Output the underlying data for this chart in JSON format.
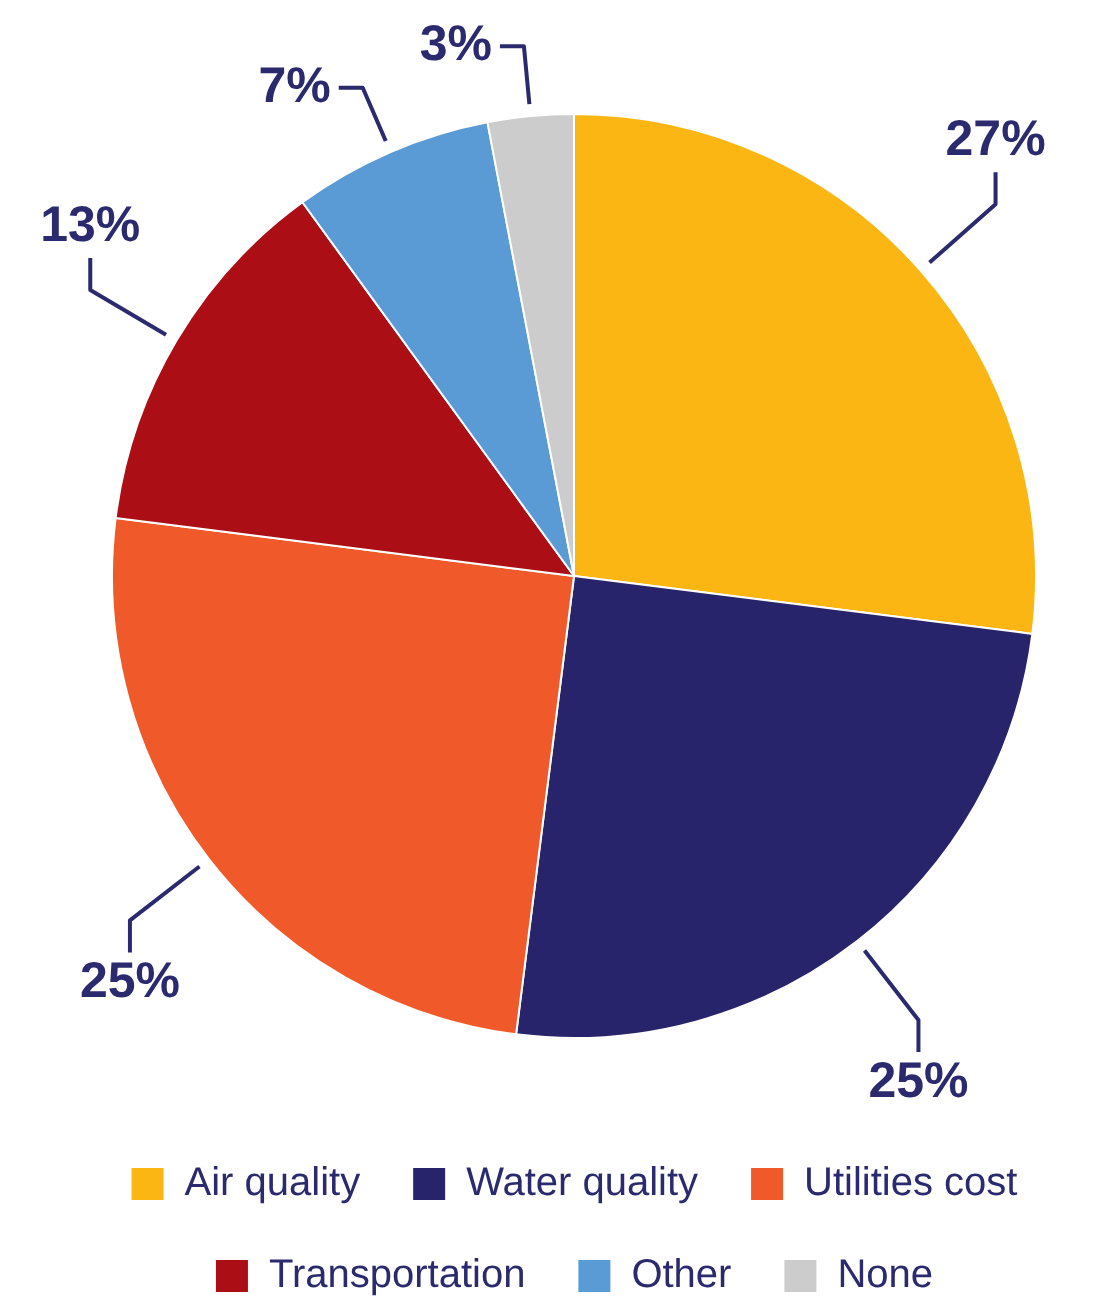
{
  "chart_data": {
    "type": "pie",
    "categories": [
      "Air quality",
      "Water quality",
      "Utilities cost",
      "Transportation",
      "Other",
      "None"
    ],
    "values": [
      27,
      25,
      25,
      13,
      7,
      3
    ],
    "colors": [
      "#fcb614",
      "#28246b",
      "#f05a2b",
      "#ab0f15",
      "#5b9bd5",
      "#cdcccd"
    ],
    "value_labels": [
      "27%",
      "25%",
      "25%",
      "13%",
      "7%",
      "3%"
    ],
    "legend": "bottom"
  }
}
